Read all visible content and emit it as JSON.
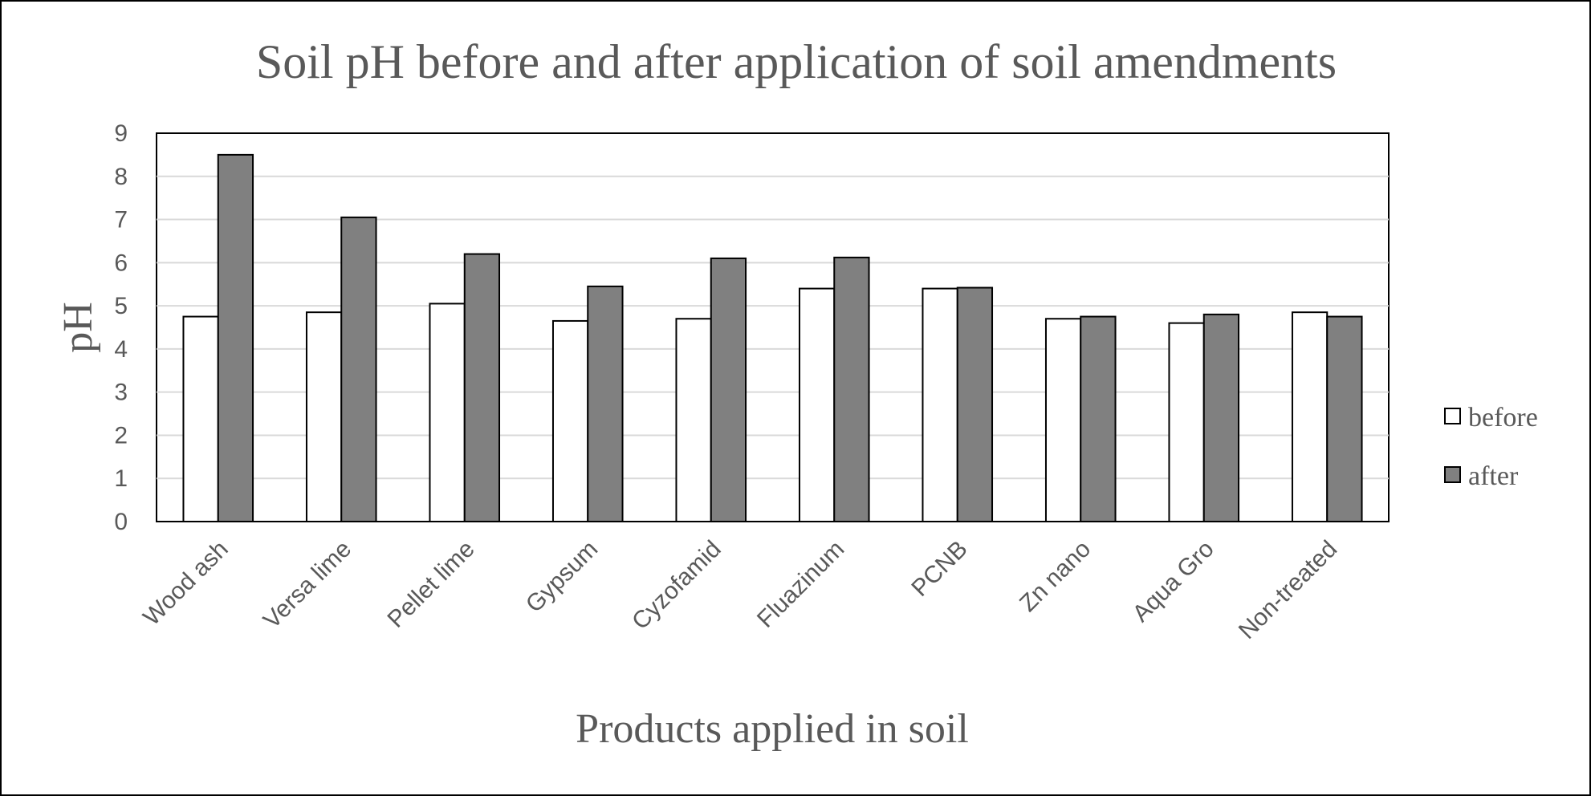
{
  "chart_data": {
    "type": "bar",
    "title": "Soil pH before and after application of soil amendments",
    "xlabel": "Products applied in soil",
    "ylabel": "pH",
    "ylim": [
      0,
      9
    ],
    "yticks": [
      "0",
      "1",
      "2",
      "3",
      "4",
      "5",
      "6",
      "7",
      "8",
      "9"
    ],
    "grid": true,
    "legend_position": "right",
    "categories": [
      "Wood ash",
      "Versa lime",
      "Pellet lime",
      "Gypsum",
      "Cyzofamid",
      "Fluazinum",
      "PCNB",
      "Zn nano",
      "Aqua Gro",
      "Non-treated"
    ],
    "series": [
      {
        "name": "before",
        "color": "#ffffff",
        "values": [
          4.75,
          4.85,
          5.05,
          4.65,
          4.7,
          5.4,
          5.4,
          4.7,
          4.6,
          4.85
        ]
      },
      {
        "name": "after",
        "color": "#808080",
        "values": [
          8.5,
          7.05,
          6.2,
          5.45,
          6.1,
          6.12,
          5.42,
          4.75,
          4.8,
          4.75
        ]
      }
    ]
  }
}
